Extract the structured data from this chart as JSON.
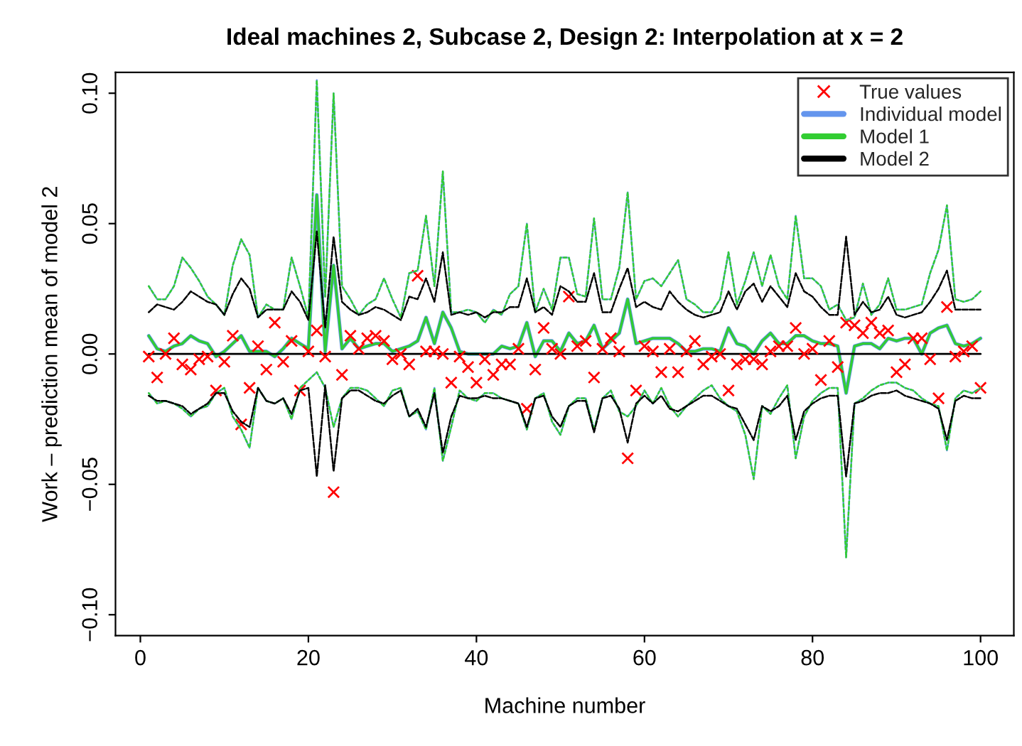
{
  "chart_data": {
    "type": "line",
    "title": "Ideal machines 2, Subcase 2, Design 2: Interpolation at x = 2",
    "xlabel": "Machine number",
    "ylabel": "Work – prediction mean of model 2",
    "x": [
      1,
      2,
      3,
      4,
      5,
      6,
      7,
      8,
      9,
      10,
      11,
      12,
      13,
      14,
      15,
      16,
      17,
      18,
      19,
      20,
      21,
      22,
      23,
      24,
      25,
      26,
      27,
      28,
      29,
      30,
      31,
      32,
      33,
      34,
      35,
      36,
      37,
      38,
      39,
      40,
      41,
      42,
      43,
      44,
      45,
      46,
      47,
      48,
      49,
      50,
      51,
      52,
      53,
      54,
      55,
      56,
      57,
      58,
      59,
      60,
      61,
      62,
      63,
      64,
      65,
      66,
      67,
      68,
      69,
      70,
      71,
      72,
      73,
      74,
      75,
      76,
      77,
      78,
      79,
      80,
      81,
      82,
      83,
      84,
      85,
      86,
      87,
      88,
      89,
      90,
      91,
      92,
      93,
      94,
      95,
      96,
      97,
      98,
      99,
      100
    ],
    "xlim": [
      -2.96,
      103.96
    ],
    "xticks": [
      0,
      20,
      40,
      60,
      80,
      100
    ],
    "ylim": [
      -0.108,
      0.108
    ],
    "yticks": [
      {
        "value": -0.1,
        "label": "−0.10"
      },
      {
        "value": -0.05,
        "label": "−0.05"
      },
      {
        "value": 0,
        "label": "0.00"
      },
      {
        "value": 0.05,
        "label": "0.05"
      },
      {
        "value": 0.1,
        "label": "0.10"
      }
    ],
    "grid": false,
    "legend": "top right",
    "series": [
      {
        "name": "True values",
        "type": "scatter",
        "marker": "cross",
        "color": "#ff0000",
        "values": [
          -0.001,
          -0.009,
          0,
          0.006,
          -0.004,
          -0.006,
          -0.002,
          -0.001,
          -0.014,
          -0.003,
          0.007,
          -0.027,
          -0.013,
          0.003,
          -0.006,
          0.012,
          -0.003,
          0.005,
          -0.014,
          0.001,
          0.009,
          -0.001,
          -0.053,
          -0.008,
          0.007,
          0.002,
          0.006,
          0.007,
          0.005,
          -0.002,
          0,
          -0.004,
          0.03,
          0.001,
          0.001,
          0,
          -0.011,
          -0.001,
          -0.005,
          -0.011,
          -0.002,
          -0.008,
          -0.004,
          -0.004,
          0.002,
          -0.021,
          -0.006,
          0.01,
          0.002,
          0,
          0.022,
          0.003,
          0.005,
          -0.009,
          0.002,
          0.006,
          0.001,
          -0.04,
          -0.014,
          0.003,
          0.001,
          -0.007,
          0.002,
          -0.007,
          0.001,
          0.005,
          -0.004,
          -0.001,
          0,
          -0.014,
          -0.004,
          -0.002,
          -0.002,
          -0.004,
          0.001,
          0.003,
          0.003,
          0.01,
          0,
          0.002,
          -0.01,
          0.005,
          -0.005,
          0.012,
          0.011,
          0.008,
          0.012,
          0.008,
          0.009,
          -0.007,
          -0.004,
          0.006,
          0.006,
          -0.002,
          -0.017,
          0.018,
          -0.001,
          0.001,
          0.003,
          -0.013
        ]
      },
      {
        "name": "Individual model",
        "line_style": "solid",
        "color": "#6495ed",
        "values": [
          0.007,
          0.002,
          0.001,
          0.003,
          0.004,
          0.007,
          0.005,
          0.004,
          -0.001,
          0.001,
          0.004,
          0.007,
          0.001,
          0.001,
          0.001,
          -0.001,
          0.002,
          0.006,
          0.004,
          0.002,
          0.061,
          0.001,
          0.034,
          0.002,
          0.006,
          0.002,
          0.003,
          0.004,
          0.004,
          0.001,
          0.002,
          0.003,
          0.005,
          0.014,
          0.004,
          0.016,
          0.01,
          0.001,
          0,
          0,
          0,
          0,
          0.003,
          0.002,
          0.003,
          0.012,
          -0.001,
          0.005,
          0.005,
          0.001,
          0.008,
          0.004,
          0.005,
          0.011,
          0.002,
          0.005,
          0.008,
          0.021,
          0.004,
          0.005,
          0.006,
          0.006,
          0.006,
          0.004,
          0.001,
          0.001,
          0.002,
          0.002,
          0.001,
          0.01,
          0.004,
          0.003,
          0,
          0.005,
          0.008,
          0.004,
          0.004,
          0.007,
          0.007,
          0.005,
          0.004,
          0.004,
          0.003,
          -0.015,
          0.003,
          0.004,
          0.004,
          0.002,
          0.006,
          0.005,
          0.006,
          0.006,
          0,
          0.008,
          0.01,
          0.011,
          0.004,
          0.003,
          0.004,
          0.006
        ]
      },
      {
        "name": "Model 1",
        "line_style": "solid",
        "color": "#32cd32",
        "values": [
          0.007,
          0.002,
          0.001,
          0.003,
          0.004,
          0.007,
          0.005,
          0.004,
          -0.001,
          0.001,
          0.004,
          0.007,
          0.001,
          0.001,
          0.001,
          -0.001,
          0.002,
          0.006,
          0.004,
          0.002,
          0.061,
          0.001,
          0.034,
          0.002,
          0.006,
          0.002,
          0.003,
          0.004,
          0.004,
          0.001,
          0.002,
          0.003,
          0.005,
          0.014,
          0.004,
          0.016,
          0.01,
          0.001,
          0,
          0,
          0,
          0,
          0.003,
          0.002,
          0.003,
          0.012,
          -0.001,
          0.005,
          0.005,
          0.001,
          0.008,
          0.004,
          0.005,
          0.011,
          0.002,
          0.005,
          0.008,
          0.021,
          0.004,
          0.005,
          0.006,
          0.006,
          0.006,
          0.004,
          0.001,
          0.001,
          0.002,
          0.002,
          0.001,
          0.01,
          0.004,
          0.003,
          0,
          0.005,
          0.008,
          0.004,
          0.004,
          0.007,
          0.007,
          0.005,
          0.004,
          0.004,
          0.003,
          -0.015,
          0.003,
          0.004,
          0.004,
          0.002,
          0.006,
          0.005,
          0.006,
          0.006,
          0,
          0.008,
          0.01,
          0.011,
          0.004,
          0.003,
          0.004,
          0.006
        ]
      },
      {
        "name": "Model 2",
        "line_style": "solid",
        "color": "#000000",
        "values": [
          0,
          0,
          0,
          0,
          0,
          0,
          0,
          0,
          0,
          0,
          0,
          0,
          0,
          0,
          0,
          0,
          0,
          0,
          0,
          0,
          0,
          0,
          0,
          0,
          0,
          0,
          0,
          0,
          0,
          0,
          0,
          0,
          0,
          0,
          0,
          0,
          0,
          0,
          0,
          0,
          0,
          0,
          0,
          0,
          0,
          0,
          0,
          0,
          0,
          0,
          0,
          0,
          0,
          0,
          0,
          0,
          0,
          0,
          0,
          0,
          0,
          0,
          0,
          0,
          0,
          0,
          0,
          0,
          0,
          0,
          0,
          0,
          0,
          0,
          0,
          0,
          0,
          0,
          0,
          0,
          0,
          0,
          0,
          0,
          0,
          0,
          0,
          0,
          0,
          0,
          0,
          0,
          0,
          0,
          0,
          0,
          0,
          0,
          0,
          0
        ]
      },
      {
        "line_style": "dashed",
        "color": "#6495ed",
        "values": [
          0.026,
          0.021,
          0.021,
          0.026,
          0.037,
          0.033,
          0.028,
          0.022,
          0.019,
          0.015,
          0.034,
          0.044,
          0.038,
          0.014,
          0.019,
          0.017,
          0.017,
          0.037,
          0.026,
          0.014,
          0.105,
          0.022,
          0.1,
          0.026,
          0.021,
          0.015,
          0.019,
          0.021,
          0.029,
          0.021,
          0.014,
          0.031,
          0.032,
          0.053,
          0.026,
          0.07,
          0.016,
          0.016,
          0.017,
          0.016,
          0.012,
          0.017,
          0.015,
          0.023,
          0.026,
          0.05,
          0.016,
          0.025,
          0.017,
          0.037,
          0.037,
          0.023,
          0.022,
          0.052,
          0.021,
          0.021,
          0.033,
          0.062,
          0.021,
          0.028,
          0.029,
          0.026,
          0.031,
          0.036,
          0.021,
          0.019,
          0.016,
          0.016,
          0.021,
          0.039,
          0.019,
          0.028,
          0.039,
          0.026,
          0.038,
          0.026,
          0.021,
          0.053,
          0.029,
          0.029,
          0.026,
          0.017,
          0.019,
          0.013,
          0.014,
          0.027,
          0.015,
          0.019,
          0.029,
          0.017,
          0.017,
          0.018,
          0.019,
          0.031,
          0.04,
          0.057,
          0.021,
          0.02,
          0.021,
          0.024
        ]
      },
      {
        "line_style": "dashed",
        "color": "#6495ed",
        "values": [
          -0.015,
          -0.019,
          -0.018,
          -0.019,
          -0.021,
          -0.024,
          -0.021,
          -0.02,
          -0.015,
          -0.013,
          -0.024,
          -0.029,
          -0.036,
          -0.013,
          -0.018,
          -0.019,
          -0.017,
          -0.025,
          -0.013,
          -0.01,
          -0.007,
          -0.013,
          -0.028,
          -0.017,
          -0.013,
          -0.013,
          -0.014,
          -0.017,
          -0.02,
          -0.014,
          -0.013,
          -0.024,
          -0.022,
          -0.029,
          -0.013,
          -0.041,
          -0.028,
          -0.014,
          -0.017,
          -0.018,
          -0.015,
          -0.015,
          -0.017,
          -0.018,
          -0.019,
          -0.029,
          -0.017,
          -0.015,
          -0.026,
          -0.031,
          -0.02,
          -0.017,
          -0.017,
          -0.029,
          -0.017,
          -0.014,
          -0.022,
          -0.024,
          -0.02,
          -0.014,
          -0.019,
          -0.013,
          -0.02,
          -0.024,
          -0.02,
          -0.017,
          -0.014,
          -0.012,
          -0.017,
          -0.02,
          -0.022,
          -0.031,
          -0.048,
          -0.02,
          -0.023,
          -0.017,
          -0.012,
          -0.04,
          -0.024,
          -0.018,
          -0.015,
          -0.013,
          -0.013,
          -0.078,
          -0.019,
          -0.017,
          -0.014,
          -0.012,
          -0.011,
          -0.011,
          -0.013,
          -0.014,
          -0.017,
          -0.019,
          -0.02,
          -0.037,
          -0.017,
          -0.014,
          -0.015,
          -0.013
        ]
      },
      {
        "line_style": "dashed",
        "color": "#32cd32",
        "values": [
          0.026,
          0.021,
          0.021,
          0.026,
          0.037,
          0.033,
          0.028,
          0.022,
          0.019,
          0.015,
          0.034,
          0.044,
          0.038,
          0.014,
          0.019,
          0.017,
          0.017,
          0.037,
          0.026,
          0.014,
          0.105,
          0.022,
          0.1,
          0.026,
          0.021,
          0.015,
          0.019,
          0.021,
          0.029,
          0.021,
          0.014,
          0.031,
          0.032,
          0.053,
          0.026,
          0.07,
          0.016,
          0.016,
          0.017,
          0.016,
          0.012,
          0.017,
          0.015,
          0.023,
          0.026,
          0.05,
          0.016,
          0.025,
          0.017,
          0.037,
          0.037,
          0.023,
          0.022,
          0.052,
          0.021,
          0.021,
          0.033,
          0.062,
          0.021,
          0.028,
          0.029,
          0.026,
          0.031,
          0.036,
          0.021,
          0.019,
          0.016,
          0.016,
          0.021,
          0.039,
          0.019,
          0.028,
          0.039,
          0.026,
          0.038,
          0.026,
          0.021,
          0.053,
          0.029,
          0.029,
          0.026,
          0.017,
          0.019,
          0.013,
          0.014,
          0.027,
          0.015,
          0.019,
          0.029,
          0.017,
          0.017,
          0.018,
          0.019,
          0.031,
          0.04,
          0.057,
          0.021,
          0.02,
          0.021,
          0.024
        ]
      },
      {
        "line_style": "dashed",
        "color": "#32cd32",
        "values": [
          -0.015,
          -0.019,
          -0.018,
          -0.019,
          -0.021,
          -0.024,
          -0.021,
          -0.02,
          -0.015,
          -0.013,
          -0.024,
          -0.029,
          -0.036,
          -0.013,
          -0.018,
          -0.019,
          -0.017,
          -0.025,
          -0.013,
          -0.01,
          -0.007,
          -0.013,
          -0.028,
          -0.017,
          -0.013,
          -0.013,
          -0.014,
          -0.017,
          -0.02,
          -0.014,
          -0.013,
          -0.024,
          -0.022,
          -0.029,
          -0.013,
          -0.041,
          -0.028,
          -0.014,
          -0.017,
          -0.018,
          -0.015,
          -0.015,
          -0.017,
          -0.018,
          -0.019,
          -0.029,
          -0.017,
          -0.015,
          -0.026,
          -0.031,
          -0.02,
          -0.017,
          -0.017,
          -0.029,
          -0.017,
          -0.014,
          -0.022,
          -0.024,
          -0.02,
          -0.014,
          -0.019,
          -0.013,
          -0.02,
          -0.024,
          -0.02,
          -0.017,
          -0.014,
          -0.012,
          -0.017,
          -0.02,
          -0.022,
          -0.031,
          -0.048,
          -0.02,
          -0.023,
          -0.017,
          -0.012,
          -0.04,
          -0.024,
          -0.018,
          -0.015,
          -0.013,
          -0.013,
          -0.078,
          -0.019,
          -0.017,
          -0.014,
          -0.012,
          -0.011,
          -0.011,
          -0.013,
          -0.014,
          -0.017,
          -0.019,
          -0.02,
          -0.037,
          -0.017,
          -0.014,
          -0.015,
          -0.013
        ]
      },
      {
        "line_style": "dashed",
        "color": "#000000",
        "values": [
          0.016,
          0.019,
          0.018,
          0.017,
          0.02,
          0.024,
          0.022,
          0.02,
          0.019,
          0.015,
          0.023,
          0.029,
          0.025,
          0.014,
          0.017,
          0.017,
          0.017,
          0.024,
          0.02,
          0.013,
          0.047,
          0.01,
          0.045,
          0.02,
          0.017,
          0.015,
          0.016,
          0.018,
          0.017,
          0.015,
          0.013,
          0.022,
          0.021,
          0.029,
          0.02,
          0.039,
          0.015,
          0.016,
          0.015,
          0.016,
          0.014,
          0.016,
          0.016,
          0.018,
          0.018,
          0.029,
          0.016,
          0.018,
          0.015,
          0.026,
          0.024,
          0.02,
          0.02,
          0.031,
          0.016,
          0.016,
          0.025,
          0.033,
          0.018,
          0.02,
          0.018,
          0.017,
          0.024,
          0.02,
          0.017,
          0.015,
          0.014,
          0.015,
          0.016,
          0.024,
          0.017,
          0.024,
          0.027,
          0.02,
          0.026,
          0.022,
          0.018,
          0.031,
          0.024,
          0.022,
          0.018,
          0.015,
          0.015,
          0.045,
          0.015,
          0.02,
          0.016,
          0.017,
          0.022,
          0.015,
          0.014,
          0.015,
          0.016,
          0.02,
          0.025,
          0.032,
          0.017,
          0.017,
          0.017,
          0.017
        ]
      },
      {
        "line_style": "dashed",
        "color": "#000000",
        "values": [
          -0.016,
          -0.018,
          -0.018,
          -0.019,
          -0.02,
          -0.023,
          -0.021,
          -0.019,
          -0.015,
          -0.015,
          -0.022,
          -0.026,
          -0.028,
          -0.013,
          -0.018,
          -0.019,
          -0.017,
          -0.023,
          -0.014,
          -0.013,
          -0.047,
          -0.012,
          -0.045,
          -0.017,
          -0.014,
          -0.014,
          -0.016,
          -0.018,
          -0.019,
          -0.016,
          -0.014,
          -0.024,
          -0.021,
          -0.028,
          -0.015,
          -0.038,
          -0.024,
          -0.016,
          -0.017,
          -0.017,
          -0.016,
          -0.017,
          -0.017,
          -0.018,
          -0.019,
          -0.028,
          -0.017,
          -0.016,
          -0.024,
          -0.028,
          -0.02,
          -0.018,
          -0.018,
          -0.03,
          -0.017,
          -0.016,
          -0.021,
          -0.034,
          -0.019,
          -0.016,
          -0.019,
          -0.016,
          -0.021,
          -0.022,
          -0.02,
          -0.018,
          -0.016,
          -0.016,
          -0.018,
          -0.02,
          -0.021,
          -0.027,
          -0.033,
          -0.02,
          -0.022,
          -0.02,
          -0.016,
          -0.033,
          -0.022,
          -0.019,
          -0.017,
          -0.016,
          -0.016,
          -0.047,
          -0.019,
          -0.018,
          -0.016,
          -0.015,
          -0.015,
          -0.014,
          -0.016,
          -0.017,
          -0.018,
          -0.019,
          -0.021,
          -0.033,
          -0.018,
          -0.016,
          -0.017,
          -0.017
        ]
      }
    ]
  }
}
